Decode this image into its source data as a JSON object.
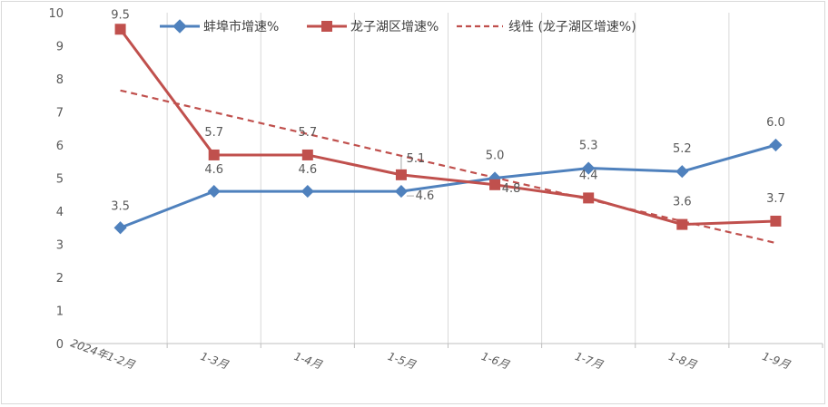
{
  "chart_data": {
    "type": "line",
    "categories": [
      "2024年1-2月",
      "1-3月",
      "1-4月",
      "1-5月",
      "1-6月",
      "1-7月",
      "1-8月",
      "1-9月"
    ],
    "ylim": [
      0,
      10
    ],
    "yticks": [
      0,
      1,
      2,
      3,
      4,
      5,
      6,
      7,
      8,
      9,
      10
    ],
    "grid": "vertical",
    "legend_position": "top",
    "series": [
      {
        "name": "蚌埠市增速%",
        "color": "#4f81bd",
        "marker": "diamond",
        "values": [
          3.5,
          4.6,
          4.6,
          4.6,
          5.0,
          5.3,
          5.2,
          6.0
        ],
        "labels": [
          "3.5",
          "4.6",
          "4.6",
          "4.6",
          "5.0",
          "5.3",
          "5.2",
          "6.0"
        ]
      },
      {
        "name": "龙子湖区增速%",
        "color": "#c0504d",
        "marker": "square",
        "values": [
          9.5,
          5.7,
          5.7,
          5.1,
          4.8,
          4.4,
          3.6,
          3.7
        ],
        "labels": [
          "9.5",
          "5.7",
          "5.7",
          "5.1",
          "4.8",
          "4.4",
          "3.6",
          "3.7"
        ]
      }
    ],
    "trendline": {
      "name": "线性 (龙子湖区增速%)",
      "color": "#c0504d",
      "style": "dashed",
      "start": 7.65,
      "end": 3.04
    }
  }
}
